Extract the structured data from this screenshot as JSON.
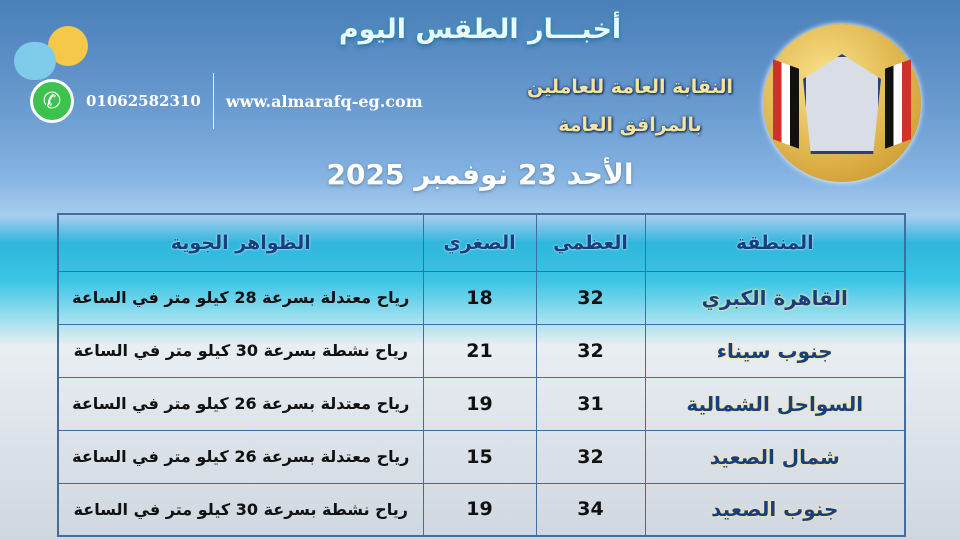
{
  "header": {
    "title": "أخبـــار الطقس اليوم",
    "weather_icon": "cloud-sun-icon",
    "phone": "01062582310",
    "phone_icon": "whatsapp-icon",
    "website": "www.almarafq-eg.com",
    "union_line1": "النقابة العامة للعاملين",
    "union_line2": "بالمرافق العامة",
    "logo_text": "النقابة العامة للعاملين بالمرافق العامة",
    "date": "الأحد 23 نوفمبر 2025"
  },
  "table": {
    "headers": [
      "المنطقة",
      "العظمي",
      "الصغري",
      "الظواهر الجوية"
    ],
    "rows": [
      {
        "region": "القاهرة الكبري",
        "max": "32",
        "min": "18",
        "weather": "رياح معتدلة بسرعة 28 كيلو متر في الساعة"
      },
      {
        "region": "جنوب سيناء",
        "max": "32",
        "min": "21",
        "weather": "رياح نشطة بسرعة 30 كيلو متر في الساعة"
      },
      {
        "region": "السواحل الشمالية",
        "max": "31",
        "min": "19",
        "weather": "رياح معتدلة بسرعة 26 كيلو متر في الساعة"
      },
      {
        "region": "شمال الصعيد",
        "max": "32",
        "min": "15",
        "weather": "رياح معتدلة بسرعة 26 كيلو متر في الساعة"
      },
      {
        "region": "جنوب الصعيد",
        "max": "34",
        "min": "19",
        "weather": "رياح نشطة بسرعة 30 كيلو متر في الساعة"
      }
    ]
  },
  "colors": {
    "header_text": "#173e80",
    "region_glow": "#f7e59a",
    "border": "#3e6fa0"
  }
}
